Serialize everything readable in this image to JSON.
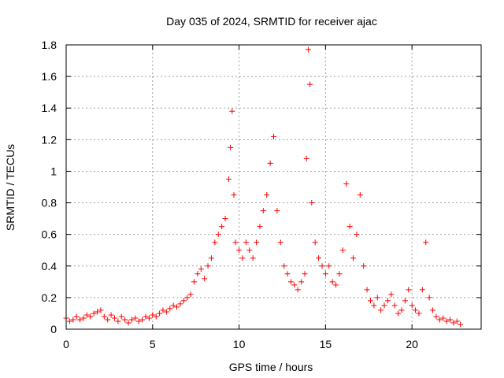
{
  "chart_data": {
    "type": "scatter",
    "title": "Day 035 of 2024, SRMTID for receiver ajac",
    "xlabel": "GPS time / hours",
    "ylabel": "SRMTID / TECUs",
    "xlim": [
      0,
      24
    ],
    "ylim": [
      0,
      1.8
    ],
    "xticks": [
      0,
      5,
      10,
      15,
      20
    ],
    "yticks": [
      0,
      0.2,
      0.4,
      0.6,
      0.8,
      1,
      1.2,
      1.4,
      1.6,
      1.8
    ],
    "xtick_labels": [
      "0",
      "5",
      "10",
      "15",
      "20"
    ],
    "ytick_labels": [
      "0",
      "0.2",
      "0.4",
      "0.6",
      "0.8",
      "1",
      "1.2",
      "1.4",
      "1.6",
      "1.8"
    ],
    "grid": true,
    "marker": "+",
    "color": "#ff0000",
    "series": [
      {
        "name": "SRMTID",
        "points": [
          [
            0.0,
            0.07
          ],
          [
            0.2,
            0.05
          ],
          [
            0.4,
            0.06
          ],
          [
            0.6,
            0.08
          ],
          [
            0.8,
            0.06
          ],
          [
            1.0,
            0.07
          ],
          [
            1.2,
            0.09
          ],
          [
            1.4,
            0.08
          ],
          [
            1.6,
            0.1
          ],
          [
            1.8,
            0.11
          ],
          [
            2.0,
            0.12
          ],
          [
            2.2,
            0.08
          ],
          [
            2.4,
            0.06
          ],
          [
            2.6,
            0.09
          ],
          [
            2.8,
            0.07
          ],
          [
            3.0,
            0.05
          ],
          [
            3.2,
            0.08
          ],
          [
            3.4,
            0.06
          ],
          [
            3.6,
            0.04
          ],
          [
            3.8,
            0.06
          ],
          [
            4.0,
            0.07
          ],
          [
            4.2,
            0.05
          ],
          [
            4.4,
            0.06
          ],
          [
            4.6,
            0.08
          ],
          [
            4.8,
            0.07
          ],
          [
            5.0,
            0.09
          ],
          [
            5.2,
            0.08
          ],
          [
            5.4,
            0.1
          ],
          [
            5.6,
            0.12
          ],
          [
            5.8,
            0.11
          ],
          [
            6.0,
            0.13
          ],
          [
            6.2,
            0.15
          ],
          [
            6.4,
            0.14
          ],
          [
            6.6,
            0.16
          ],
          [
            6.8,
            0.18
          ],
          [
            7.0,
            0.2
          ],
          [
            7.2,
            0.22
          ],
          [
            7.4,
            0.3
          ],
          [
            7.6,
            0.35
          ],
          [
            7.8,
            0.38
          ],
          [
            8.0,
            0.32
          ],
          [
            8.2,
            0.4
          ],
          [
            8.4,
            0.45
          ],
          [
            8.6,
            0.55
          ],
          [
            8.8,
            0.6
          ],
          [
            9.0,
            0.65
          ],
          [
            9.2,
            0.7
          ],
          [
            9.4,
            0.95
          ],
          [
            9.5,
            1.15
          ],
          [
            9.6,
            1.38
          ],
          [
            9.7,
            0.85
          ],
          [
            9.8,
            0.55
          ],
          [
            10.0,
            0.5
          ],
          [
            10.2,
            0.45
          ],
          [
            10.4,
            0.55
          ],
          [
            10.6,
            0.5
          ],
          [
            10.8,
            0.45
          ],
          [
            11.0,
            0.55
          ],
          [
            11.2,
            0.65
          ],
          [
            11.4,
            0.75
          ],
          [
            11.6,
            0.85
          ],
          [
            11.8,
            1.05
          ],
          [
            12.0,
            1.22
          ],
          [
            12.2,
            0.75
          ],
          [
            12.4,
            0.55
          ],
          [
            12.6,
            0.4
          ],
          [
            12.8,
            0.35
          ],
          [
            13.0,
            0.3
          ],
          [
            13.2,
            0.28
          ],
          [
            13.4,
            0.25
          ],
          [
            13.6,
            0.3
          ],
          [
            13.8,
            0.35
          ],
          [
            13.9,
            1.08
          ],
          [
            14.0,
            1.77
          ],
          [
            14.1,
            1.55
          ],
          [
            14.2,
            0.8
          ],
          [
            14.4,
            0.55
          ],
          [
            14.6,
            0.45
          ],
          [
            14.8,
            0.4
          ],
          [
            15.0,
            0.35
          ],
          [
            15.2,
            0.4
          ],
          [
            15.4,
            0.3
          ],
          [
            15.6,
            0.28
          ],
          [
            15.8,
            0.35
          ],
          [
            16.0,
            0.5
          ],
          [
            16.2,
            0.92
          ],
          [
            16.4,
            0.65
          ],
          [
            16.6,
            0.45
          ],
          [
            16.8,
            0.6
          ],
          [
            17.0,
            0.85
          ],
          [
            17.2,
            0.4
          ],
          [
            17.4,
            0.25
          ],
          [
            17.6,
            0.18
          ],
          [
            17.8,
            0.15
          ],
          [
            18.0,
            0.2
          ],
          [
            18.2,
            0.12
          ],
          [
            18.4,
            0.15
          ],
          [
            18.6,
            0.18
          ],
          [
            18.8,
            0.22
          ],
          [
            19.0,
            0.15
          ],
          [
            19.2,
            0.1
          ],
          [
            19.4,
            0.12
          ],
          [
            19.6,
            0.18
          ],
          [
            19.8,
            0.25
          ],
          [
            20.0,
            0.15
          ],
          [
            20.2,
            0.12
          ],
          [
            20.4,
            0.1
          ],
          [
            20.6,
            0.25
          ],
          [
            20.8,
            0.55
          ],
          [
            21.0,
            0.2
          ],
          [
            21.2,
            0.12
          ],
          [
            21.4,
            0.08
          ],
          [
            21.6,
            0.06
          ],
          [
            21.8,
            0.07
          ],
          [
            22.0,
            0.05
          ],
          [
            22.2,
            0.06
          ],
          [
            22.4,
            0.04
          ],
          [
            22.6,
            0.05
          ],
          [
            22.8,
            0.03
          ]
        ]
      }
    ]
  }
}
